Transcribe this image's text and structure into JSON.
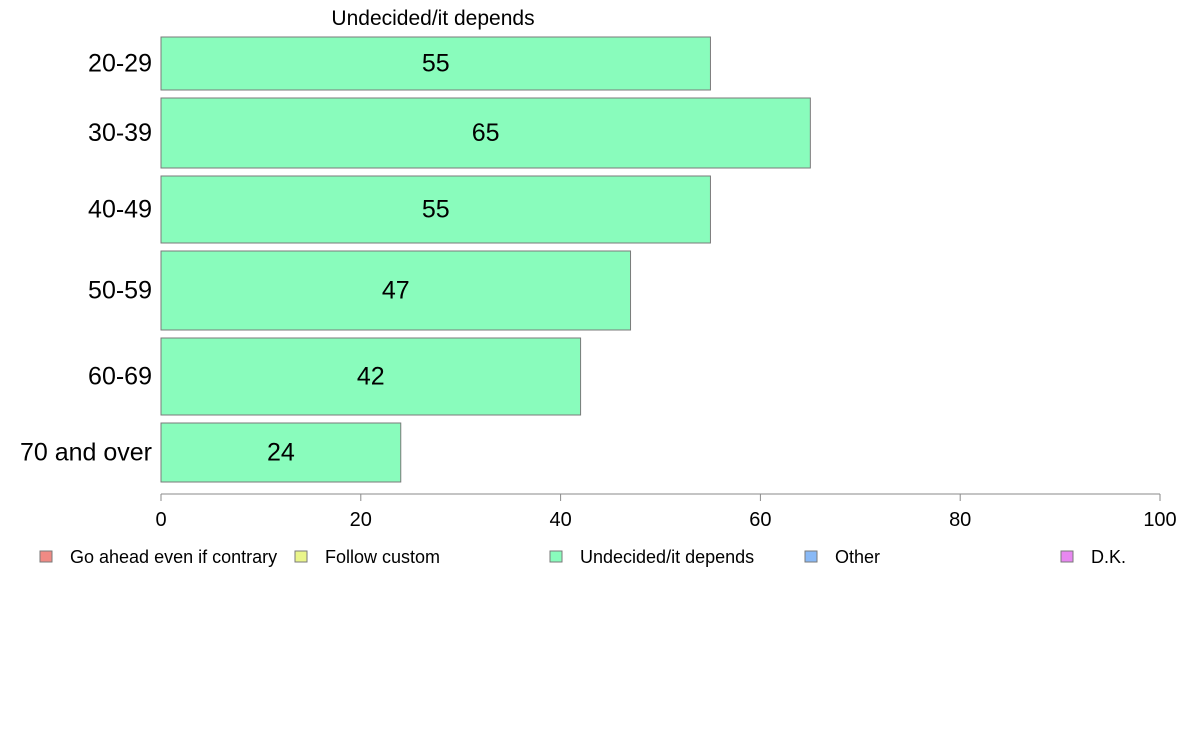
{
  "chart_data": {
    "type": "bar",
    "orientation": "horizontal",
    "title": "Undecided/it depends",
    "categories": [
      "20-29",
      "30-39",
      "40-49",
      "50-59",
      "60-69",
      "70 and over"
    ],
    "values": [
      55,
      65,
      55,
      47,
      42,
      24
    ],
    "value_labels": [
      "55",
      "65",
      "55",
      "47",
      "42",
      "24"
    ],
    "xlim": [
      0,
      100
    ],
    "xticks": [
      0,
      20,
      40,
      60,
      80,
      100
    ],
    "xtick_labels": [
      "0",
      "20",
      "40",
      "60",
      "80",
      "100"
    ],
    "grid": false,
    "legend_position": "bottom",
    "legend": [
      {
        "label": "Go ahead even if contrary",
        "color": "#f08a84"
      },
      {
        "label": "Follow custom",
        "color": "#eaf58a"
      },
      {
        "label": "Undecided/it depends",
        "color": "#89fcbc"
      },
      {
        "label": "Other",
        "color": "#89b9f6"
      },
      {
        "label": "D.K.",
        "color": "#e787f0"
      }
    ],
    "bar_color": "#89fcbc",
    "bar_edge_color": "#7a7a7a"
  }
}
